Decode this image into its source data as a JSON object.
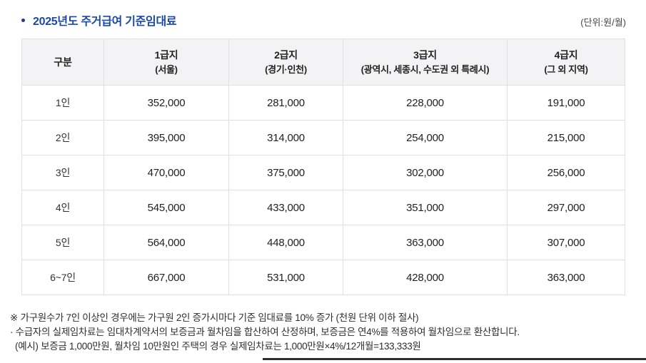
{
  "header": {
    "title": "2025년도 주거급여 기준임대료",
    "unit": "(단위:원/월)"
  },
  "table": {
    "columns": [
      {
        "label": "구분",
        "sub": ""
      },
      {
        "label": "1급지",
        "sub": "(서울)"
      },
      {
        "label": "2급지",
        "sub": "(경기·인천)"
      },
      {
        "label": "3급지",
        "sub": "(광역시, 세종시, 수도권 외 특례시)"
      },
      {
        "label": "4급지",
        "sub": "(그 외 지역)"
      }
    ],
    "rows": [
      {
        "label": "1인",
        "values": [
          "352,000",
          "281,000",
          "228,000",
          "191,000"
        ]
      },
      {
        "label": "2인",
        "values": [
          "395,000",
          "314,000",
          "254,000",
          "215,000"
        ]
      },
      {
        "label": "3인",
        "values": [
          "470,000",
          "375,000",
          "302,000",
          "256,000"
        ]
      },
      {
        "label": "4인",
        "values": [
          "545,000",
          "433,000",
          "351,000",
          "297,000"
        ]
      },
      {
        "label": "5인",
        "values": [
          "564,000",
          "448,000",
          "363,000",
          "307,000"
        ]
      },
      {
        "label": "6~7인",
        "values": [
          "667,000",
          "531,000",
          "428,000",
          "363,000"
        ]
      }
    ]
  },
  "notes": {
    "note1": "※ 가구원수가 7인 이상인 경우에는 가구원 2인 증가시마다 기준 임대료를 10% 증가 (천원 단위 이하 절사)",
    "note2": "· 수급자의 실제임차료는 임대차계약서의 보증금과 월차임을 합산하여 산정하며, 보증금은 연4%를 적용하여 월차임으로 환산합니다.",
    "note3": "(예시) 보증금 1,000만원, 월차임 10만원인 주택의 경우 실제임차료는 1,000만원×4%/12개월=133,333원"
  },
  "colors": {
    "title_blue": "#1a49ad",
    "header_bg": "#f3f3f5"
  }
}
